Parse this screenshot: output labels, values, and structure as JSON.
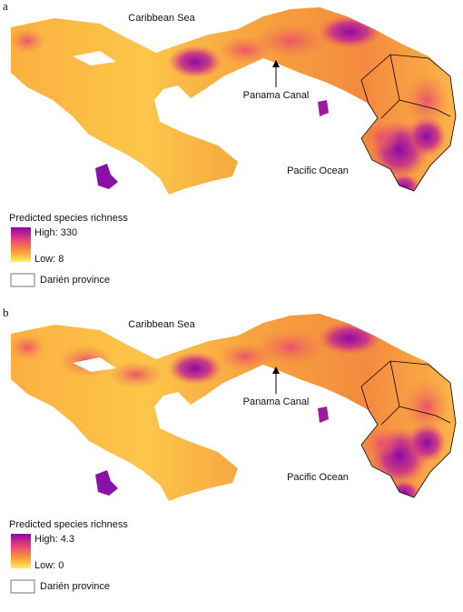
{
  "panels": [
    {
      "label": "a",
      "caribbean": "Caribbean Sea",
      "pacific": "Pacific Ocean",
      "canal": "Panama Canal",
      "legend": {
        "title": "Predicted species richness",
        "high": "High: 330",
        "low": "Low: 8",
        "boundary": "Darién province"
      }
    },
    {
      "label": "b",
      "caribbean": "Caribbean Sea",
      "pacific": "Pacific Ocean",
      "canal": "Panama Canal",
      "legend": {
        "title": "Predicted species richness",
        "high": "High: 4.3",
        "low": "Low: 0",
        "boundary": "Darién province"
      }
    }
  ]
}
